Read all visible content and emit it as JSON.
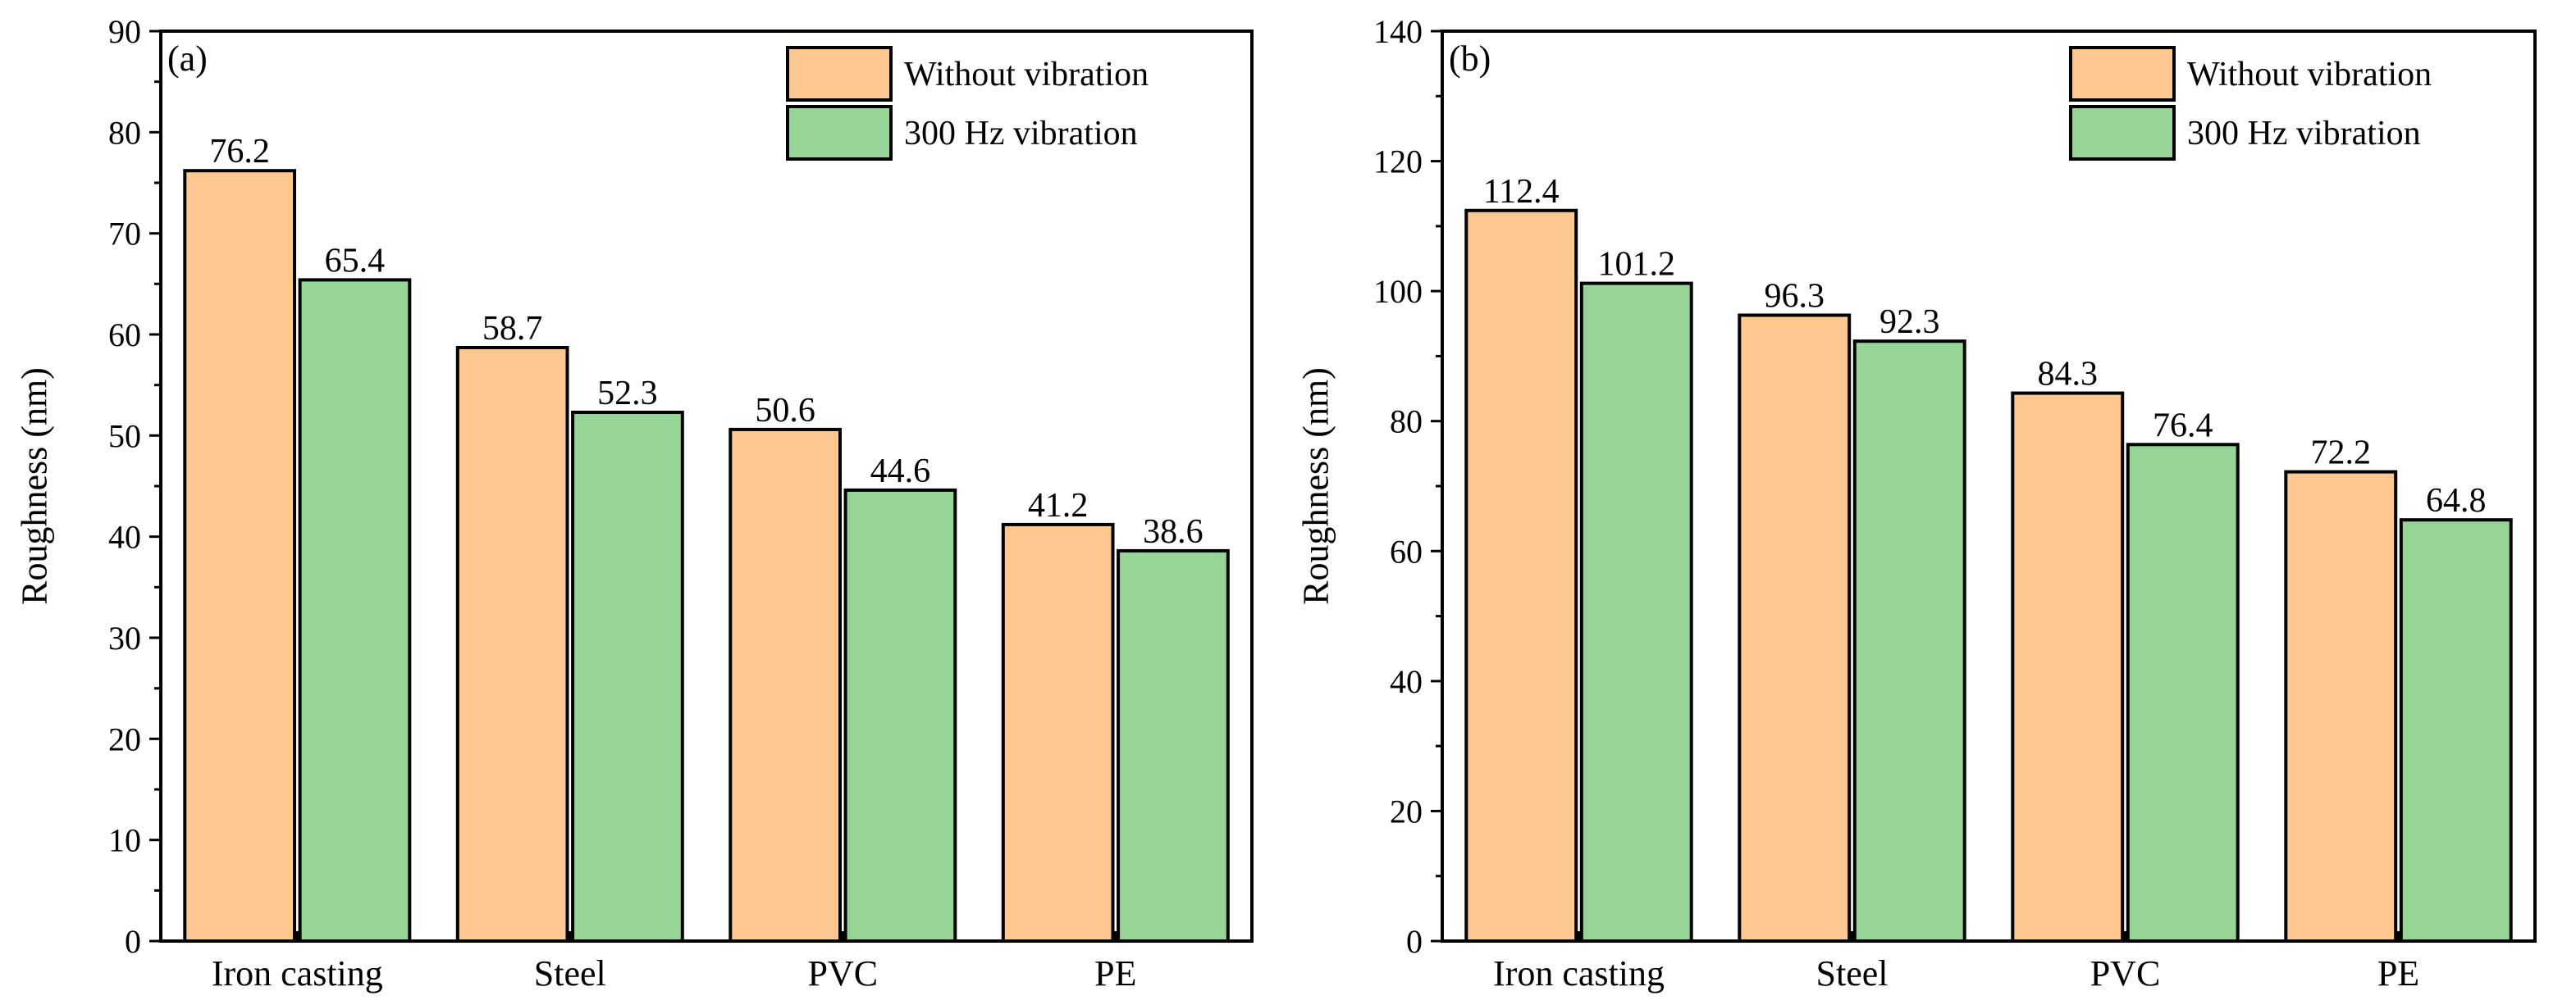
{
  "colors": {
    "without_vibration": "#FFC891",
    "with_vibration": "#96D596",
    "stroke": "#000000"
  },
  "chart_data": [
    {
      "type": "bar",
      "panel": "(a)",
      "title": "",
      "xlabel": "",
      "ylabel": "Roughness (nm)",
      "ylim": [
        0,
        90
      ],
      "yticks": [
        0,
        10,
        20,
        30,
        40,
        50,
        60,
        70,
        80,
        90
      ],
      "categories": [
        "Iron casting",
        "Steel",
        "PVC",
        "PE"
      ],
      "series": [
        {
          "name": "Without vibration",
          "values": [
            76.2,
            58.7,
            50.6,
            41.2
          ],
          "labels": [
            "76.2",
            "58.7",
            "50.6",
            "41.2"
          ]
        },
        {
          "name": "300 Hz vibration",
          "values": [
            65.4,
            52.3,
            44.6,
            38.6
          ],
          "labels": [
            "65.4",
            "52.3",
            "44.6",
            "38.6"
          ]
        }
      ],
      "legend_position": "top-right",
      "grid": false
    },
    {
      "type": "bar",
      "panel": "(b)",
      "title": "",
      "xlabel": "",
      "ylabel": "Roughness (nm)",
      "ylim": [
        0,
        140
      ],
      "yticks": [
        0,
        20,
        40,
        60,
        80,
        100,
        120,
        140
      ],
      "categories": [
        "Iron casting",
        "Steel",
        "PVC",
        "PE"
      ],
      "series": [
        {
          "name": "Without vibration",
          "values": [
            112.4,
            96.3,
            84.3,
            72.2
          ],
          "labels": [
            "112.4",
            "96.3",
            "84.3",
            "72.2"
          ]
        },
        {
          "name": "300 Hz vibration",
          "values": [
            101.2,
            92.3,
            76.4,
            64.8
          ],
          "labels": [
            "101.2",
            "92.3",
            "76.4",
            "64.8"
          ]
        }
      ],
      "legend_position": "top-right",
      "grid": false
    }
  ]
}
